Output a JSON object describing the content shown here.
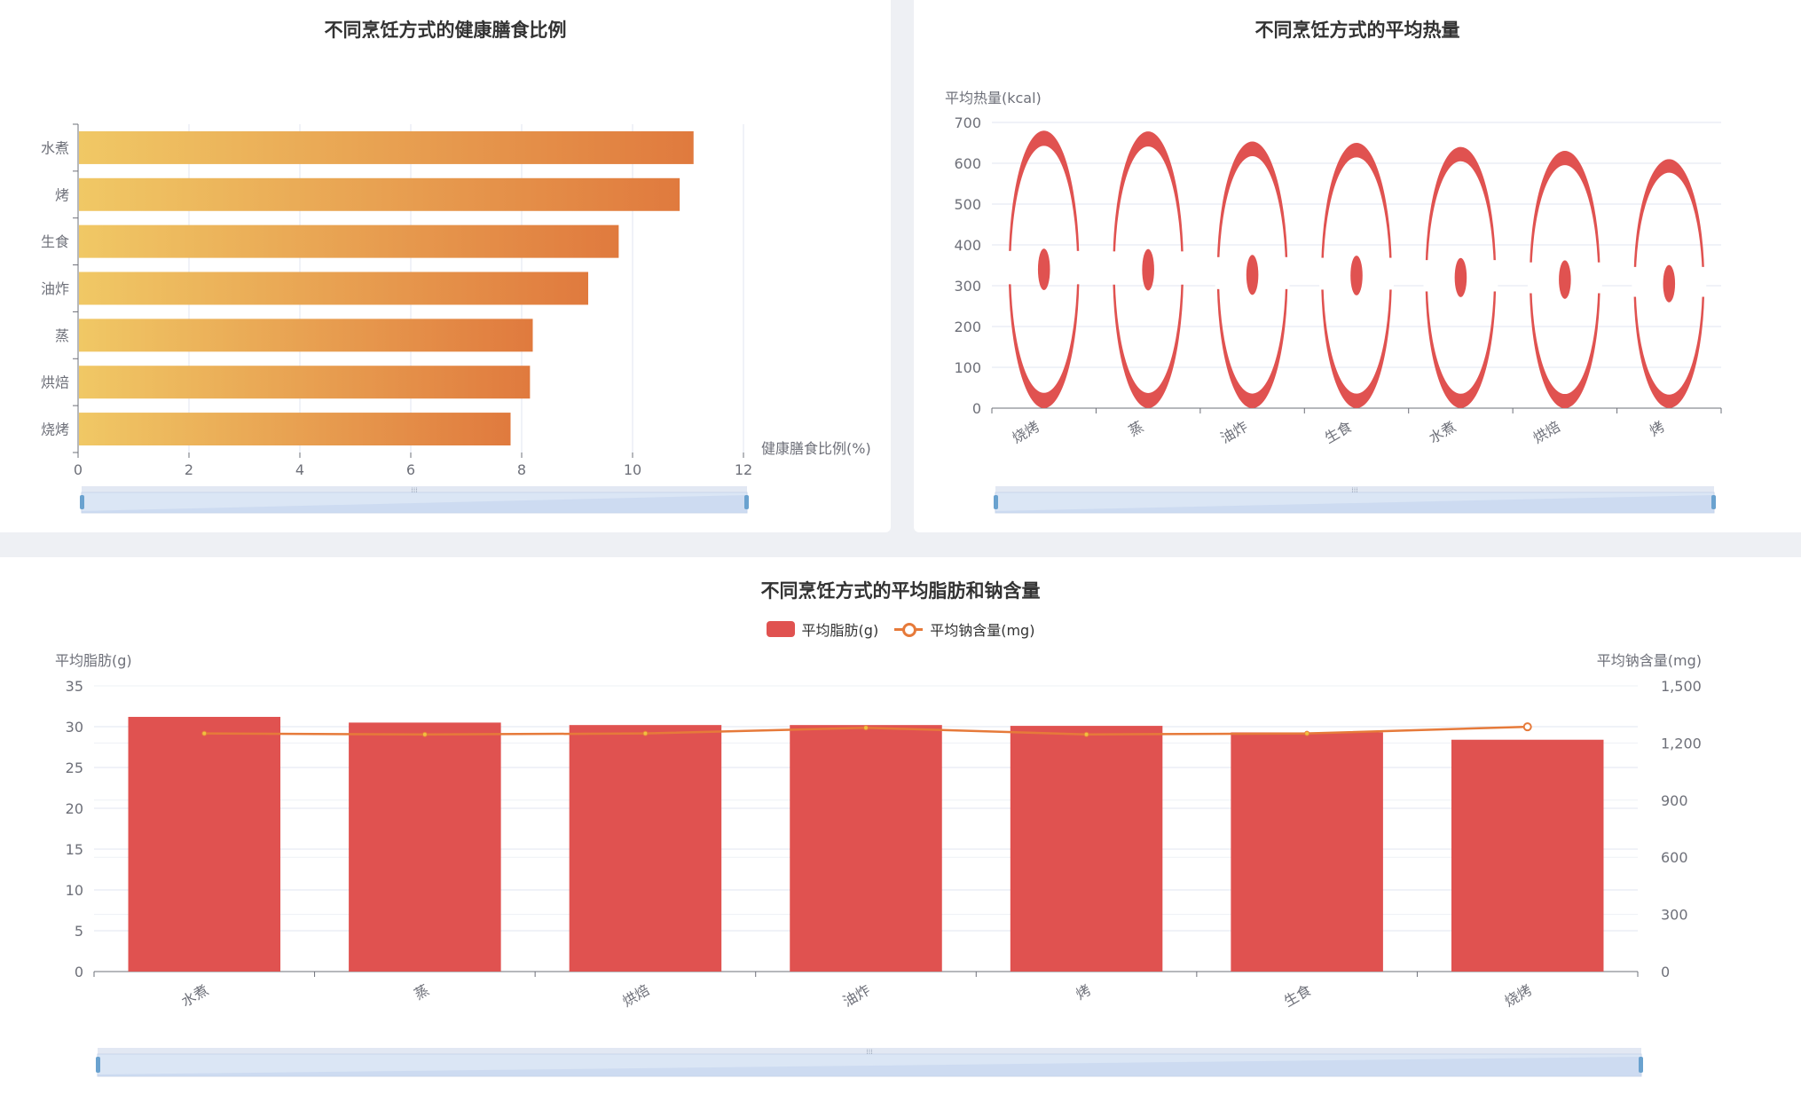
{
  "colors": {
    "bar_gradient_start": "#f0c865",
    "bar_gradient_end": "#e07a3e",
    "calorie": "#e05250",
    "fat_bar": "#e05250",
    "sodium_line": "#e67a3a",
    "sodium_point": "#f0c040",
    "zoom_fill": "#dbe6f5",
    "zoom_handle": "#6aa2cf"
  },
  "chart_data": [
    {
      "id": "healthy-ratio",
      "type": "bar",
      "orientation": "horizontal",
      "title": "不同烹饪方式的健康膳食比例",
      "xlabel": "健康膳食比例(%)",
      "ylabel": "",
      "categories": [
        "水煮",
        "烤",
        "生食",
        "油炸",
        "蒸",
        "烘焙",
        "烧烤"
      ],
      "values": [
        11.1,
        10.85,
        9.75,
        9.2,
        8.2,
        8.15,
        7.8
      ],
      "xlim": [
        0,
        12
      ],
      "xticks": [
        "0",
        "2",
        "4",
        "6",
        "8",
        "10",
        "12"
      ],
      "grid": true,
      "datazoom": "bottom"
    },
    {
      "id": "avg-calorie",
      "type": "pictorial",
      "title": "不同烹饪方式的平均热量",
      "ylabel": "平均热量(kcal)",
      "xlabel": "",
      "categories": [
        "烧烤",
        "蒸",
        "油炸",
        "生食",
        "水煮",
        "烘焙",
        "烤"
      ],
      "values": [
        680,
        678,
        653,
        650,
        640,
        630,
        610
      ],
      "ylim": [
        0,
        700
      ],
      "yticks": [
        "0",
        "100",
        "200",
        "300",
        "400",
        "500",
        "600",
        "700"
      ],
      "grid": true,
      "datazoom": "bottom"
    },
    {
      "id": "fat-sodium",
      "type": "bar",
      "title": "不同烹饪方式的平均脂肪和钠含量",
      "categories": [
        "水煮",
        "蒸",
        "烘焙",
        "油炸",
        "烤",
        "生食",
        "烧烤"
      ],
      "series": [
        {
          "name": "平均脂肪(g)",
          "type": "bar",
          "axis": "left",
          "values": [
            31.2,
            30.5,
            30.2,
            30.2,
            30.1,
            29.3,
            28.4
          ]
        },
        {
          "name": "平均钠含量(mg)",
          "type": "line",
          "axis": "right",
          "values": [
            1250,
            1245,
            1250,
            1280,
            1245,
            1250,
            1285
          ]
        }
      ],
      "ylabel_left": "平均脂肪(g)",
      "ylabel_right": "平均钠含量(mg)",
      "ylim_left": [
        0,
        35
      ],
      "ylim_right": [
        0,
        1500
      ],
      "yticks_left": [
        "0",
        "5",
        "10",
        "15",
        "20",
        "25",
        "30",
        "35"
      ],
      "yticks_right": [
        "0",
        "300",
        "600",
        "900",
        "1,200",
        "1,500"
      ],
      "legend": "top-center",
      "grid": true,
      "datazoom": "bottom"
    }
  ]
}
